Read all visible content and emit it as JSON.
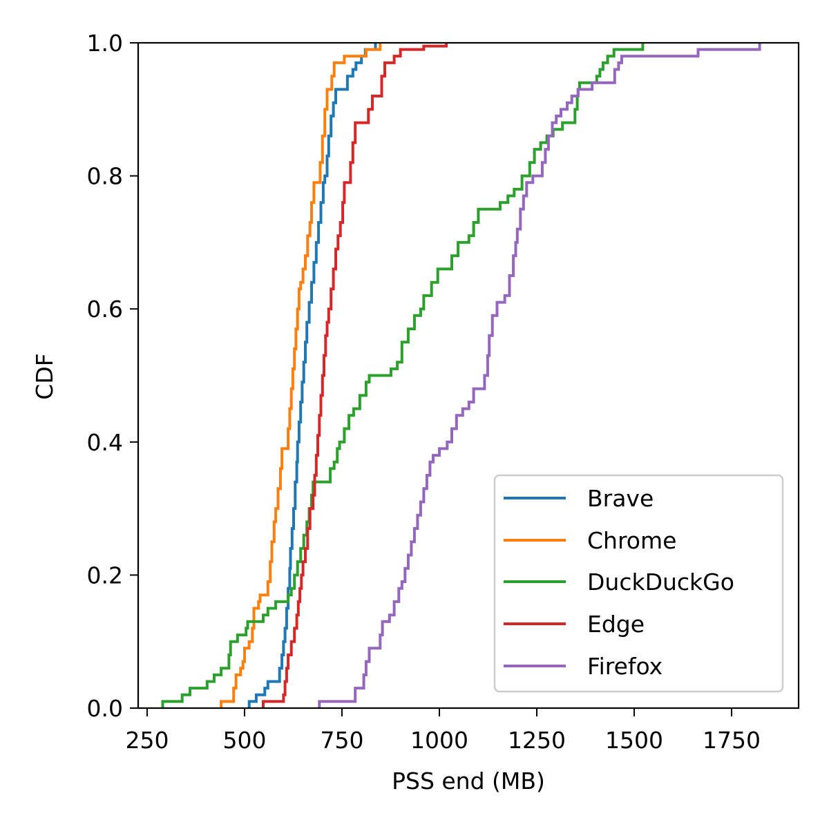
{
  "chart_data": {
    "type": "line",
    "subtype": "step-cdf",
    "title": "",
    "xlabel": "PSS end (MB)",
    "ylabel": "CDF",
    "xlim": [
      227,
      1922
    ],
    "ylim": [
      0.0,
      1.0
    ],
    "xticks": [
      250,
      500,
      750,
      1000,
      1250,
      1500,
      1750
    ],
    "xtick_labels": [
      "250",
      "500",
      "750",
      "1000",
      "1250",
      "1500",
      "1750"
    ],
    "yticks": [
      0.0,
      0.2,
      0.4,
      0.6,
      0.8,
      1.0
    ],
    "ytick_labels": [
      "0.0",
      "0.2",
      "0.4",
      "0.6",
      "0.8",
      "1.0"
    ],
    "grid": false,
    "legend_position": "lower right",
    "series": [
      {
        "name": "Brave",
        "color": "#1f77b4",
        "points": [
          [
            512,
            0.0
          ],
          [
            512,
            0.01
          ],
          [
            530,
            0.01
          ],
          [
            530,
            0.02
          ],
          [
            548,
            0.02
          ],
          [
            552,
            0.03
          ],
          [
            560,
            0.04
          ],
          [
            585,
            0.04
          ],
          [
            590,
            0.06
          ],
          [
            596,
            0.08
          ],
          [
            600,
            0.1
          ],
          [
            604,
            0.12
          ],
          [
            608,
            0.15
          ],
          [
            612,
            0.18
          ],
          [
            616,
            0.21
          ],
          [
            618,
            0.24
          ],
          [
            622,
            0.27
          ],
          [
            626,
            0.3
          ],
          [
            630,
            0.34
          ],
          [
            634,
            0.37
          ],
          [
            636,
            0.4
          ],
          [
            640,
            0.43
          ],
          [
            644,
            0.46
          ],
          [
            648,
            0.49
          ],
          [
            652,
            0.52
          ],
          [
            656,
            0.55
          ],
          [
            660,
            0.58
          ],
          [
            666,
            0.61
          ],
          [
            672,
            0.64
          ],
          [
            678,
            0.67
          ],
          [
            684,
            0.7
          ],
          [
            690,
            0.73
          ],
          [
            696,
            0.76
          ],
          [
            702,
            0.79
          ],
          [
            706,
            0.8
          ],
          [
            712,
            0.83
          ],
          [
            716,
            0.86
          ],
          [
            722,
            0.89
          ],
          [
            728,
            0.91
          ],
          [
            734,
            0.93
          ],
          [
            760,
            0.93
          ],
          [
            764,
            0.95
          ],
          [
            778,
            0.96
          ],
          [
            786,
            0.97
          ],
          [
            800,
            0.98
          ],
          [
            810,
            0.99
          ],
          [
            826,
            0.99
          ],
          [
            836,
            1.0
          ]
        ]
      },
      {
        "name": "Chrome",
        "color": "#ff7f0e",
        "points": [
          [
            440,
            0.0
          ],
          [
            440,
            0.01
          ],
          [
            468,
            0.01
          ],
          [
            472,
            0.03
          ],
          [
            478,
            0.05
          ],
          [
            490,
            0.06
          ],
          [
            496,
            0.07
          ],
          [
            500,
            0.09
          ],
          [
            512,
            0.1
          ],
          [
            520,
            0.12
          ],
          [
            524,
            0.15
          ],
          [
            536,
            0.16
          ],
          [
            540,
            0.17
          ],
          [
            556,
            0.17
          ],
          [
            560,
            0.19
          ],
          [
            566,
            0.22
          ],
          [
            570,
            0.25
          ],
          [
            576,
            0.28
          ],
          [
            580,
            0.3
          ],
          [
            586,
            0.33
          ],
          [
            592,
            0.36
          ],
          [
            596,
            0.39
          ],
          [
            608,
            0.39
          ],
          [
            612,
            0.42
          ],
          [
            616,
            0.45
          ],
          [
            620,
            0.48
          ],
          [
            624,
            0.51
          ],
          [
            628,
            0.54
          ],
          [
            632,
            0.57
          ],
          [
            636,
            0.6
          ],
          [
            640,
            0.63
          ],
          [
            644,
            0.64
          ],
          [
            650,
            0.66
          ],
          [
            656,
            0.68
          ],
          [
            662,
            0.71
          ],
          [
            668,
            0.73
          ],
          [
            672,
            0.76
          ],
          [
            678,
            0.79
          ],
          [
            690,
            0.79
          ],
          [
            694,
            0.82
          ],
          [
            700,
            0.86
          ],
          [
            706,
            0.9
          ],
          [
            712,
            0.93
          ],
          [
            724,
            0.95
          ],
          [
            730,
            0.97
          ],
          [
            752,
            0.97
          ],
          [
            756,
            0.98
          ],
          [
            804,
            0.98
          ],
          [
            812,
            0.99
          ],
          [
            832,
            0.99
          ],
          [
            848,
            1.0
          ]
        ]
      },
      {
        "name": "DuckDuckGo",
        "color": "#2ca02c",
        "points": [
          [
            290,
            0.0
          ],
          [
            290,
            0.01
          ],
          [
            340,
            0.01
          ],
          [
            340,
            0.02
          ],
          [
            360,
            0.02
          ],
          [
            360,
            0.03
          ],
          [
            400,
            0.03
          ],
          [
            404,
            0.04
          ],
          [
            418,
            0.04
          ],
          [
            422,
            0.05
          ],
          [
            436,
            0.05
          ],
          [
            440,
            0.06
          ],
          [
            456,
            0.06
          ],
          [
            460,
            0.08
          ],
          [
            464,
            0.1
          ],
          [
            478,
            0.1
          ],
          [
            482,
            0.11
          ],
          [
            500,
            0.11
          ],
          [
            504,
            0.12
          ],
          [
            508,
            0.13
          ],
          [
            544,
            0.13
          ],
          [
            548,
            0.14
          ],
          [
            560,
            0.15
          ],
          [
            580,
            0.16
          ],
          [
            604,
            0.16
          ],
          [
            612,
            0.17
          ],
          [
            620,
            0.18
          ],
          [
            628,
            0.2
          ],
          [
            636,
            0.22
          ],
          [
            644,
            0.24
          ],
          [
            652,
            0.26
          ],
          [
            660,
            0.28
          ],
          [
            666,
            0.3
          ],
          [
            672,
            0.32
          ],
          [
            676,
            0.34
          ],
          [
            714,
            0.34
          ],
          [
            720,
            0.36
          ],
          [
            730,
            0.37
          ],
          [
            738,
            0.39
          ],
          [
            744,
            0.4
          ],
          [
            756,
            0.42
          ],
          [
            768,
            0.44
          ],
          [
            780,
            0.45
          ],
          [
            796,
            0.47
          ],
          [
            812,
            0.49
          ],
          [
            820,
            0.5
          ],
          [
            864,
            0.5
          ],
          [
            876,
            0.51
          ],
          [
            892,
            0.52
          ],
          [
            904,
            0.55
          ],
          [
            920,
            0.57
          ],
          [
            936,
            0.59
          ],
          [
            952,
            0.6
          ],
          [
            960,
            0.62
          ],
          [
            980,
            0.64
          ],
          [
            996,
            0.66
          ],
          [
            1020,
            0.66
          ],
          [
            1032,
            0.68
          ],
          [
            1048,
            0.7
          ],
          [
            1064,
            0.7
          ],
          [
            1076,
            0.71
          ],
          [
            1088,
            0.73
          ],
          [
            1100,
            0.75
          ],
          [
            1140,
            0.75
          ],
          [
            1156,
            0.76
          ],
          [
            1176,
            0.77
          ],
          [
            1192,
            0.78
          ],
          [
            1212,
            0.8
          ],
          [
            1232,
            0.82
          ],
          [
            1244,
            0.84
          ],
          [
            1260,
            0.85
          ],
          [
            1276,
            0.86
          ],
          [
            1292,
            0.87
          ],
          [
            1316,
            0.88
          ],
          [
            1340,
            0.88
          ],
          [
            1348,
            0.9
          ],
          [
            1354,
            0.92
          ],
          [
            1356,
            0.93
          ],
          [
            1360,
            0.94
          ],
          [
            1396,
            0.94
          ],
          [
            1404,
            0.95
          ],
          [
            1412,
            0.96
          ],
          [
            1420,
            0.97
          ],
          [
            1432,
            0.98
          ],
          [
            1448,
            0.99
          ],
          [
            1520,
            0.99
          ],
          [
            1522,
            1.0
          ]
        ]
      },
      {
        "name": "Edge",
        "color": "#d62728",
        "points": [
          [
            548,
            0.0
          ],
          [
            548,
            0.01
          ],
          [
            596,
            0.01
          ],
          [
            600,
            0.02
          ],
          [
            604,
            0.04
          ],
          [
            608,
            0.06
          ],
          [
            612,
            0.08
          ],
          [
            620,
            0.1
          ],
          [
            628,
            0.12
          ],
          [
            634,
            0.14
          ],
          [
            638,
            0.16
          ],
          [
            642,
            0.18
          ],
          [
            646,
            0.2
          ],
          [
            650,
            0.22
          ],
          [
            656,
            0.24
          ],
          [
            662,
            0.27
          ],
          [
            668,
            0.3
          ],
          [
            676,
            0.32
          ],
          [
            680,
            0.35
          ],
          [
            684,
            0.38
          ],
          [
            688,
            0.41
          ],
          [
            692,
            0.44
          ],
          [
            696,
            0.47
          ],
          [
            700,
            0.5
          ],
          [
            704,
            0.53
          ],
          [
            708,
            0.56
          ],
          [
            712,
            0.58
          ],
          [
            716,
            0.6
          ],
          [
            722,
            0.63
          ],
          [
            728,
            0.66
          ],
          [
            734,
            0.69
          ],
          [
            740,
            0.71
          ],
          [
            746,
            0.73
          ],
          [
            752,
            0.76
          ],
          [
            756,
            0.79
          ],
          [
            768,
            0.79
          ],
          [
            772,
            0.82
          ],
          [
            778,
            0.85
          ],
          [
            784,
            0.88
          ],
          [
            812,
            0.88
          ],
          [
            818,
            0.9
          ],
          [
            828,
            0.92
          ],
          [
            844,
            0.92
          ],
          [
            852,
            0.95
          ],
          [
            860,
            0.97
          ],
          [
            876,
            0.97
          ],
          [
            884,
            0.98
          ],
          [
            900,
            0.99
          ],
          [
            960,
            0.99
          ],
          [
            960,
            0.995
          ],
          [
            1014,
            0.995
          ],
          [
            1018,
            1.0
          ]
        ]
      },
      {
        "name": "Firefox",
        "color": "#9467bd",
        "points": [
          [
            692,
            0.0
          ],
          [
            692,
            0.01
          ],
          [
            780,
            0.01
          ],
          [
            784,
            0.03
          ],
          [
            800,
            0.03
          ],
          [
            806,
            0.05
          ],
          [
            812,
            0.07
          ],
          [
            820,
            0.09
          ],
          [
            844,
            0.09
          ],
          [
            848,
            0.11
          ],
          [
            854,
            0.13
          ],
          [
            866,
            0.13
          ],
          [
            872,
            0.14
          ],
          [
            884,
            0.16
          ],
          [
            896,
            0.18
          ],
          [
            904,
            0.19
          ],
          [
            912,
            0.21
          ],
          [
            920,
            0.23
          ],
          [
            928,
            0.25
          ],
          [
            936,
            0.27
          ],
          [
            944,
            0.29
          ],
          [
            952,
            0.31
          ],
          [
            960,
            0.33
          ],
          [
            968,
            0.35
          ],
          [
            976,
            0.37
          ],
          [
            984,
            0.38
          ],
          [
            1000,
            0.39
          ],
          [
            1020,
            0.4
          ],
          [
            1032,
            0.42
          ],
          [
            1044,
            0.44
          ],
          [
            1060,
            0.45
          ],
          [
            1076,
            0.46
          ],
          [
            1088,
            0.48
          ],
          [
            1108,
            0.48
          ],
          [
            1116,
            0.5
          ],
          [
            1124,
            0.53
          ],
          [
            1128,
            0.56
          ],
          [
            1136,
            0.59
          ],
          [
            1148,
            0.61
          ],
          [
            1168,
            0.62
          ],
          [
            1180,
            0.65
          ],
          [
            1190,
            0.68
          ],
          [
            1196,
            0.7
          ],
          [
            1200,
            0.72
          ],
          [
            1208,
            0.75
          ],
          [
            1216,
            0.77
          ],
          [
            1224,
            0.79
          ],
          [
            1240,
            0.8
          ],
          [
            1256,
            0.8
          ],
          [
            1264,
            0.82
          ],
          [
            1272,
            0.84
          ],
          [
            1280,
            0.86
          ],
          [
            1290,
            0.88
          ],
          [
            1300,
            0.89
          ],
          [
            1312,
            0.9
          ],
          [
            1328,
            0.91
          ],
          [
            1340,
            0.92
          ],
          [
            1356,
            0.93
          ],
          [
            1380,
            0.93
          ],
          [
            1392,
            0.94
          ],
          [
            1440,
            0.94
          ],
          [
            1450,
            0.96
          ],
          [
            1460,
            0.97
          ],
          [
            1468,
            0.98
          ],
          [
            1660,
            0.98
          ],
          [
            1664,
            0.99
          ],
          [
            1820,
            0.99
          ],
          [
            1822,
            1.0
          ]
        ]
      }
    ]
  },
  "axes": {
    "xlabel": "PSS end (MB)",
    "ylabel": "CDF"
  },
  "legend": {
    "items": [
      {
        "label": "Brave",
        "color": "#1f77b4"
      },
      {
        "label": "Chrome",
        "color": "#ff7f0e"
      },
      {
        "label": "DuckDuckGo",
        "color": "#2ca02c"
      },
      {
        "label": "Edge",
        "color": "#d62728"
      },
      {
        "label": "Firefox",
        "color": "#9467bd"
      }
    ]
  }
}
